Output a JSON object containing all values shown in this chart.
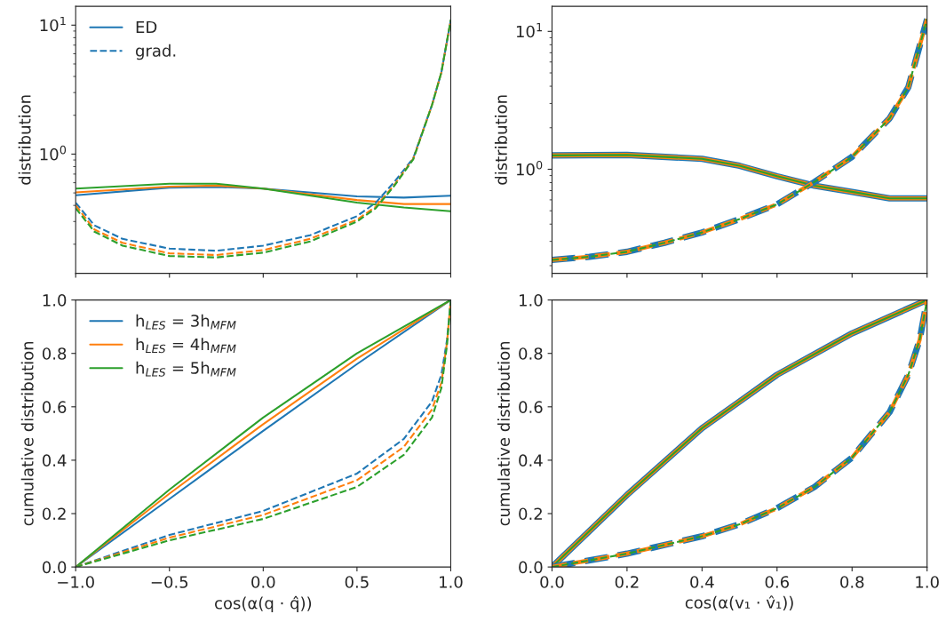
{
  "chart_data": [
    {
      "type": "line",
      "ylabel": "distribution",
      "log": "y",
      "xlim": [
        -1,
        1
      ],
      "ylim": [
        0.119,
        14
      ],
      "xticks": [
        -1,
        -0.5,
        0,
        0.5,
        1
      ],
      "yticks": [
        {
          "value": 1,
          "label": "10$^{0}$"
        },
        {
          "value": 10,
          "label": "10$^{1}$"
        }
      ],
      "tick_labels": "y",
      "legend": "top left",
      "grid": false,
      "series": [
        {
          "name": "ED",
          "color": "#1f77b4",
          "line_style": "solid",
          "x": [
            -1,
            -0.5,
            -0.25,
            0,
            0.5,
            0.75,
            1
          ],
          "values": [
            0.48,
            0.55,
            0.556,
            0.54,
            0.47,
            0.46,
            0.475
          ]
        },
        {
          "color": "#ff7f0e",
          "line_style": "solid",
          "x": [
            -1,
            -0.5,
            -0.25,
            0,
            0.5,
            0.75,
            1
          ],
          "values": [
            0.505,
            0.56,
            0.57,
            0.54,
            0.44,
            0.41,
            0.41
          ]
        },
        {
          "color": "#2ca02c",
          "line_style": "solid",
          "x": [
            -1,
            -0.5,
            -0.25,
            0,
            0.5,
            0.75,
            1
          ],
          "values": [
            0.54,
            0.59,
            0.59,
            0.54,
            0.42,
            0.385,
            0.36
          ]
        },
        {
          "name": "grad.",
          "color": "#1f77b4",
          "line_style": "dashed",
          "x": [
            -1,
            -0.9,
            -0.75,
            -0.5,
            -0.25,
            0,
            0.25,
            0.5,
            0.6,
            0.7,
            0.8,
            0.9,
            0.95,
            1
          ],
          "values": [
            0.42,
            0.28,
            0.22,
            0.185,
            0.178,
            0.195,
            0.235,
            0.33,
            0.42,
            0.61,
            0.93,
            2.4,
            4.3,
            10.9
          ]
        },
        {
          "color": "#ff7f0e",
          "line_style": "dashed",
          "x": [
            -1,
            -0.9,
            -0.75,
            -0.5,
            -0.25,
            0,
            0.25,
            0.5,
            0.6,
            0.7,
            0.8,
            0.9,
            0.95,
            1
          ],
          "values": [
            0.4,
            0.26,
            0.205,
            0.17,
            0.165,
            0.18,
            0.22,
            0.31,
            0.39,
            0.58,
            0.92,
            2.4,
            4.3,
            10.9
          ]
        },
        {
          "color": "#2ca02c",
          "line_style": "dashed",
          "x": [
            -1,
            -0.9,
            -0.75,
            -0.5,
            -0.25,
            0,
            0.25,
            0.5,
            0.6,
            0.7,
            0.8,
            0.9,
            0.95,
            1
          ],
          "values": [
            0.38,
            0.25,
            0.195,
            0.162,
            0.158,
            0.172,
            0.21,
            0.3,
            0.38,
            0.57,
            0.91,
            2.4,
            4.3,
            11
          ]
        }
      ]
    },
    {
      "type": "line",
      "ylabel": "distribution",
      "log": "y",
      "xlim": [
        0,
        1
      ],
      "ylim": [
        0.176,
        15.2
      ],
      "xticks": [
        0,
        0.2,
        0.4,
        0.6,
        0.8,
        1
      ],
      "yticks": [
        {
          "value": 1,
          "label": "10$^{0}$"
        },
        {
          "value": 10,
          "label": "10$^{1}$"
        }
      ],
      "tick_labels": "y",
      "grid": false,
      "series": [
        {
          "color": "#1f77b4",
          "line_style": "solid",
          "x": [
            0,
            0.2,
            0.4,
            0.5,
            0.6,
            0.7,
            0.8,
            0.9,
            1
          ],
          "values": [
            1.26,
            1.27,
            1.19,
            1.06,
            0.89,
            0.76,
            0.686,
            0.615,
            0.615
          ]
        },
        {
          "color": "#ff7f0e",
          "line_style": "solid",
          "x": [
            0,
            0.2,
            0.4,
            0.5,
            0.6,
            0.7,
            0.8,
            0.9,
            1
          ],
          "values": [
            1.26,
            1.27,
            1.19,
            1.06,
            0.89,
            0.76,
            0.686,
            0.615,
            0.615
          ]
        },
        {
          "color": "#2ca02c",
          "line_style": "solid",
          "x": [
            0,
            0.2,
            0.4,
            0.5,
            0.6,
            0.7,
            0.8,
            0.9,
            1
          ],
          "values": [
            1.26,
            1.27,
            1.19,
            1.06,
            0.89,
            0.76,
            0.686,
            0.615,
            0.615
          ]
        },
        {
          "color": "#1f77b4",
          "line_style": "dashed",
          "x": [
            0,
            0.1,
            0.2,
            0.3,
            0.4,
            0.5,
            0.6,
            0.7,
            0.8,
            0.9,
            0.95,
            1
          ],
          "values": [
            0.22,
            0.232,
            0.252,
            0.293,
            0.348,
            0.435,
            0.557,
            0.81,
            1.23,
            2.34,
            3.94,
            12.3
          ]
        },
        {
          "color": "#ff7f0e",
          "line_style": "dashed",
          "x": [
            0,
            0.1,
            0.2,
            0.3,
            0.4,
            0.5,
            0.6,
            0.7,
            0.8,
            0.9,
            0.95,
            1
          ],
          "values": [
            0.22,
            0.232,
            0.252,
            0.293,
            0.348,
            0.435,
            0.557,
            0.81,
            1.23,
            2.34,
            3.94,
            12.3
          ]
        },
        {
          "color": "#2ca02c",
          "line_style": "dashed",
          "x": [
            0,
            0.1,
            0.2,
            0.3,
            0.4,
            0.5,
            0.6,
            0.7,
            0.8,
            0.9,
            0.95,
            1
          ],
          "values": [
            0.22,
            0.232,
            0.252,
            0.293,
            0.348,
            0.435,
            0.557,
            0.81,
            1.23,
            2.34,
            3.94,
            12.3
          ]
        }
      ]
    },
    {
      "type": "line",
      "xlabel": "cos(α(q · q̂))",
      "ylabel": "cumulative distribution",
      "xlim": [
        -1,
        1
      ],
      "ylim": [
        0,
        1
      ],
      "xticks": [
        {
          "value": -1,
          "label": "−1.0"
        },
        {
          "value": -0.5,
          "label": "−0.5"
        },
        {
          "value": 0,
          "label": "0.0"
        },
        {
          "value": 0.5,
          "label": "0.5"
        },
        {
          "value": 1,
          "label": "1.0"
        }
      ],
      "yticks": [
        {
          "value": 0,
          "label": "0.0"
        },
        {
          "value": 0.2,
          "label": "0.2"
        },
        {
          "value": 0.4,
          "label": "0.4"
        },
        {
          "value": 0.6,
          "label": "0.6"
        },
        {
          "value": 0.8,
          "label": "0.8"
        },
        {
          "value": 1,
          "label": "1.0"
        }
      ],
      "legend": "top left",
      "grid": false,
      "series": [
        {
          "name": "h$_{LES}$ = 3h$_{MFM}$",
          "color": "#1f77b4",
          "line_style": "solid",
          "x": [
            -1,
            -0.5,
            0,
            0.5,
            1
          ],
          "values": [
            0,
            0.255,
            0.51,
            0.76,
            1
          ]
        },
        {
          "name": "h$_{LES}$ = 4h$_{MFM}$",
          "color": "#ff7f0e",
          "line_style": "solid",
          "x": [
            -1,
            -0.5,
            0,
            0.5,
            1
          ],
          "values": [
            0,
            0.275,
            0.535,
            0.78,
            1
          ]
        },
        {
          "name": "h$_{LES}$ = 5h$_{MFM}$",
          "color": "#2ca02c",
          "line_style": "solid",
          "x": [
            -1,
            -0.5,
            0,
            0.5,
            1
          ],
          "values": [
            0,
            0.29,
            0.56,
            0.8,
            1
          ]
        },
        {
          "color": "#1f77b4",
          "line_style": "dashed",
          "x": [
            -1,
            -0.5,
            0,
            0.5,
            0.75,
            0.9,
            0.95,
            0.98,
            1
          ],
          "values": [
            0,
            0.12,
            0.21,
            0.35,
            0.48,
            0.62,
            0.72,
            0.85,
            1
          ]
        },
        {
          "color": "#ff7f0e",
          "line_style": "dashed",
          "x": [
            -1,
            -0.5,
            0,
            0.5,
            0.75,
            0.9,
            0.95,
            0.98,
            1
          ],
          "values": [
            0,
            0.11,
            0.195,
            0.325,
            0.45,
            0.59,
            0.69,
            0.84,
            1
          ]
        },
        {
          "color": "#2ca02c",
          "line_style": "dashed",
          "x": [
            -1,
            -0.5,
            0,
            0.5,
            0.75,
            0.9,
            0.95,
            0.98,
            1
          ],
          "values": [
            0,
            0.1,
            0.18,
            0.3,
            0.42,
            0.56,
            0.67,
            0.83,
            1
          ]
        }
      ]
    },
    {
      "type": "line",
      "xlabel": "cos(α(v₁ · v̂₁))",
      "ylabel": "cumulative distribution",
      "xlim": [
        0,
        1
      ],
      "ylim": [
        0,
        1
      ],
      "xticks": [
        {
          "value": 0,
          "label": "0.0"
        },
        {
          "value": 0.2,
          "label": "0.2"
        },
        {
          "value": 0.4,
          "label": "0.4"
        },
        {
          "value": 0.6,
          "label": "0.6"
        },
        {
          "value": 0.8,
          "label": "0.8"
        },
        {
          "value": 1,
          "label": "1.0"
        }
      ],
      "yticks": [
        {
          "value": 0,
          "label": "0.0"
        },
        {
          "value": 0.2,
          "label": "0.2"
        },
        {
          "value": 0.4,
          "label": "0.4"
        },
        {
          "value": 0.6,
          "label": "0.6"
        },
        {
          "value": 0.8,
          "label": "0.8"
        },
        {
          "value": 1,
          "label": "1.0"
        }
      ],
      "grid": false,
      "series": [
        {
          "color": "#1f77b4",
          "line_style": "solid",
          "x": [
            0,
            0.2,
            0.4,
            0.5,
            0.6,
            0.8,
            1
          ],
          "values": [
            0,
            0.27,
            0.52,
            0.62,
            0.72,
            0.875,
            1
          ]
        },
        {
          "color": "#ff7f0e",
          "line_style": "solid",
          "x": [
            0,
            0.2,
            0.4,
            0.5,
            0.6,
            0.8,
            1
          ],
          "values": [
            0,
            0.27,
            0.52,
            0.62,
            0.72,
            0.875,
            1
          ]
        },
        {
          "color": "#2ca02c",
          "line_style": "solid",
          "x": [
            0,
            0.2,
            0.4,
            0.5,
            0.6,
            0.8,
            1
          ],
          "values": [
            0,
            0.27,
            0.52,
            0.62,
            0.72,
            0.875,
            1
          ]
        },
        {
          "color": "#1f77b4",
          "line_style": "dashed",
          "x": [
            0,
            0.2,
            0.4,
            0.5,
            0.6,
            0.7,
            0.8,
            0.9,
            0.95,
            0.98,
            1
          ],
          "values": [
            0,
            0.05,
            0.115,
            0.16,
            0.22,
            0.3,
            0.41,
            0.58,
            0.72,
            0.85,
            1
          ]
        },
        {
          "color": "#ff7f0e",
          "line_style": "dashed",
          "x": [
            0,
            0.2,
            0.4,
            0.5,
            0.6,
            0.7,
            0.8,
            0.9,
            0.95,
            0.98,
            1
          ],
          "values": [
            0,
            0.05,
            0.115,
            0.16,
            0.22,
            0.3,
            0.41,
            0.58,
            0.72,
            0.85,
            1
          ]
        },
        {
          "color": "#2ca02c",
          "line_style": "dashed",
          "x": [
            0,
            0.2,
            0.4,
            0.5,
            0.6,
            0.7,
            0.8,
            0.9,
            0.95,
            0.98,
            1
          ],
          "values": [
            0,
            0.05,
            0.115,
            0.16,
            0.22,
            0.3,
            0.41,
            0.58,
            0.72,
            0.85,
            1
          ]
        }
      ]
    }
  ]
}
